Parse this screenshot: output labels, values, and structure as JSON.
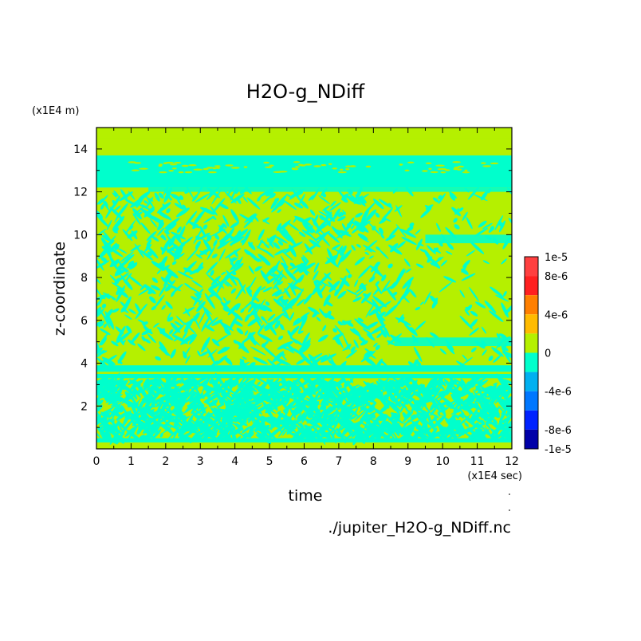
{
  "chart_data": {
    "type": "heatmap",
    "title": "H2O-g_NDiff",
    "xlabel": "time",
    "ylabel": "z-coordinate",
    "x_unit": "(x1E4 sec)",
    "y_unit": "(x1E4 m)",
    "footer": "./jupiter_H2O-g_NDiff.nc",
    "xlim": [
      0,
      12
    ],
    "ylim": [
      0,
      15
    ],
    "x_ticks": [
      "0",
      "1",
      "2",
      "3",
      "4",
      "5",
      "6",
      "7",
      "8",
      "9",
      "10",
      "11",
      "12"
    ],
    "y_ticks": [
      "2",
      "4",
      "6",
      "8",
      "10",
      "12",
      "14"
    ],
    "colorbar": {
      "range": [
        -1e-05,
        1e-05
      ],
      "tick_labels": [
        "1e-5",
        "8e-6",
        "4e-6",
        "0",
        "-4e-6",
        "-8e-6",
        "-1e-5"
      ],
      "levels": [
        {
          "min": 8e-06,
          "max": 1e-05,
          "color": "#ff4040"
        },
        {
          "min": 6e-06,
          "max": 8e-06,
          "color": "#ff2020"
        },
        {
          "min": 4e-06,
          "max": 6e-06,
          "color": "#ff7f00"
        },
        {
          "min": 2e-06,
          "max": 4e-06,
          "color": "#ffbb00"
        },
        {
          "min": 0,
          "max": 2e-06,
          "color": "#b5f000"
        },
        {
          "min": -2e-06,
          "max": 0,
          "color": "#00ffcc"
        },
        {
          "min": -4e-06,
          "max": -2e-06,
          "color": "#00b0f0"
        },
        {
          "min": -6e-06,
          "max": -4e-06,
          "color": "#0077ff"
        },
        {
          "min": -8e-06,
          "max": -6e-06,
          "color": "#0022ff"
        },
        {
          "min": -1e-05,
          "max": -8e-06,
          "color": "#0000a8"
        }
      ]
    },
    "bands": [
      {
        "y0": 14.5,
        "y1": 15.0,
        "level": "positive"
      },
      {
        "y0": 13.7,
        "y1": 14.5,
        "level": "positive"
      },
      {
        "y0": 12.2,
        "y1": 13.7,
        "level": "negative"
      },
      {
        "y0": 3.6,
        "y1": 3.9,
        "level": "negative"
      },
      {
        "y0": 3.3,
        "y1": 3.5,
        "level": "negative"
      },
      {
        "y0": 0.3,
        "y1": 0.5,
        "level": "negative"
      }
    ]
  },
  "colors": {
    "positive": "#b5f000",
    "negative": "#00ffcc"
  }
}
